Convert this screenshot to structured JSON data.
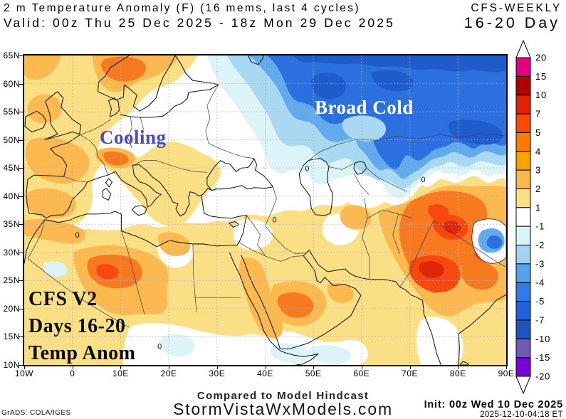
{
  "header": {
    "title": "2 m Temperature Anomaly (F) (16 mems, last 4 cycles)",
    "model": "CFS-WEEKLY",
    "valid": "Valid: 00z Thu 25 Dec 2025 - 18z Mon 29 Dec 2025",
    "period": "16-20 Day"
  },
  "map": {
    "annotations": {
      "broad_cold": "Broad Cold",
      "cooling": "Cooling",
      "corner_line1": "CFS V2",
      "corner_line2": "Days 16-20",
      "corner_line3": "Temp Anom"
    },
    "zero_contour_label": "0",
    "axes": {
      "lat_labels": [
        "65N",
        "60N",
        "55N",
        "50N",
        "45N",
        "40N",
        "35N",
        "30N",
        "25N",
        "20N",
        "15N",
        "10N"
      ],
      "lon_labels": [
        "10W",
        "0",
        "10E",
        "20E",
        "30E",
        "40E",
        "50E",
        "60E",
        "70E",
        "80E",
        "90E"
      ]
    }
  },
  "colorbar": {
    "labels": [
      "20",
      "15",
      "10",
      "7",
      "5",
      "4",
      "3",
      "2",
      "1",
      "-1",
      "-2",
      "-3",
      "-4",
      "-5",
      "-7",
      "-10",
      "-15",
      "-20"
    ],
    "band_colors": [
      "#e5007e",
      "#b20000",
      "#df2300",
      "#fc4a00",
      "#fb7b00",
      "#fba100",
      "#f9b84e",
      "#fbe080",
      "#ffffff",
      "#d9f3f7",
      "#a4d3f1",
      "#57a3e9",
      "#2f7ce8",
      "#2161de",
      "#1d53c3",
      "#6f59b2",
      "#7b00db"
    ]
  },
  "chart_data": {
    "type": "heatmap",
    "units": "F anomaly",
    "regions": [
      {
        "name": "NW Russia / western Siberia (Broad Cold)",
        "anomaly": "-4 to -7"
      },
      {
        "name": "Scandinavia",
        "anomaly": "+3 to +5"
      },
      {
        "name": "UK / France / Iberia",
        "anomaly": "+1 to +4"
      },
      {
        "name": "Central Europe (Cooling)",
        "anomaly": "-1 to +1"
      },
      {
        "name": "North Africa (Algeria/Libya)",
        "anomaly": "+2 to +7"
      },
      {
        "name": "Arabian Peninsula",
        "anomaly": "+1 to +5"
      },
      {
        "name": "Central Asia / Pakistan / NW India",
        "anomaly": "+5 to +15"
      },
      {
        "name": "Himalayan spot",
        "anomaly": "-3 to -7"
      },
      {
        "name": "South India / Horn of Africa / Sahel",
        "anomaly": "-1 to +1"
      }
    ]
  },
  "footer": {
    "hindcast_note": "Compared to Model Hindcast",
    "site": "StormVistaWxModels.com",
    "credit": "GrADS: COLA/IGES",
    "init": "Init: 00z Wed 10 Dec 2025",
    "generated": "2025-12-10-04:18 ET"
  }
}
